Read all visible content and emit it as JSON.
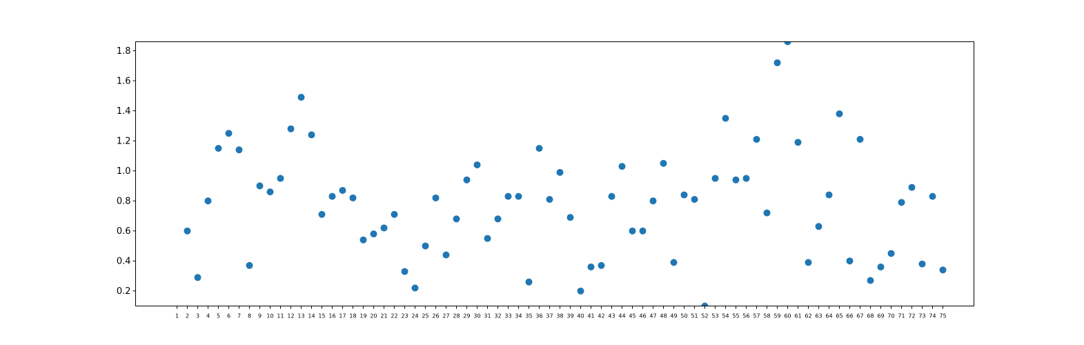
{
  "chart_data": {
    "type": "scatter",
    "title": "",
    "xlabel": "",
    "ylabel": "",
    "grid": false,
    "legend": false,
    "marker_color": "#1f77b4",
    "ylim": [
      0.1,
      1.86
    ],
    "xlim": [
      -3,
      78
    ],
    "y_ticks": [
      "0.2",
      "0.4",
      "0.6",
      "0.8",
      "1.0",
      "1.2",
      "1.4",
      "1.6",
      "1.8"
    ],
    "x_ticks": [
      "1",
      "2",
      "3",
      "4",
      "5",
      "6",
      "7",
      "8",
      "9",
      "10",
      "11",
      "12",
      "13",
      "14",
      "15",
      "16",
      "17",
      "18",
      "19",
      "20",
      "21",
      "22",
      "23",
      "24",
      "25",
      "26",
      "27",
      "28",
      "29",
      "30",
      "31",
      "32",
      "33",
      "34",
      "35",
      "36",
      "37",
      "38",
      "39",
      "40",
      "41",
      "42",
      "43",
      "44",
      "45",
      "46",
      "47",
      "48",
      "49",
      "50",
      "51",
      "52",
      "53",
      "54",
      "55",
      "56",
      "57",
      "58",
      "59",
      "60",
      "61",
      "62",
      "63",
      "64",
      "65",
      "66",
      "67",
      "68",
      "69",
      "70",
      "71",
      "72",
      "73",
      "74",
      "75"
    ],
    "x": [
      2,
      3,
      4,
      5,
      6,
      7,
      8,
      9,
      10,
      11,
      12,
      13,
      14,
      15,
      16,
      17,
      18,
      19,
      20,
      21,
      22,
      23,
      24,
      25,
      26,
      27,
      28,
      29,
      30,
      31,
      32,
      33,
      34,
      35,
      36,
      37,
      38,
      39,
      40,
      41,
      42,
      43,
      44,
      45,
      46,
      47,
      48,
      49,
      50,
      51,
      52,
      53,
      54,
      55,
      56,
      57,
      58,
      59,
      60,
      61,
      62,
      63,
      64,
      65,
      66,
      67,
      68,
      69,
      70,
      71,
      72,
      73,
      74,
      75
    ],
    "y": [
      0.6,
      0.29,
      0.8,
      1.15,
      1.25,
      1.14,
      0.37,
      0.9,
      0.86,
      0.95,
      1.28,
      1.49,
      1.24,
      0.71,
      0.83,
      0.87,
      0.82,
      0.54,
      0.58,
      0.62,
      0.71,
      0.33,
      0.22,
      0.5,
      0.82,
      0.44,
      0.68,
      0.94,
      1.04,
      0.55,
      0.68,
      0.83,
      0.83,
      0.26,
      1.15,
      0.81,
      0.99,
      0.69,
      0.2,
      0.36,
      0.37,
      0.83,
      1.03,
      0.6,
      0.6,
      0.8,
      1.05,
      0.39,
      0.84,
      0.81,
      0.1,
      0.95,
      1.35,
      0.94,
      0.95,
      1.21,
      0.72,
      1.72,
      1.86,
      1.19,
      0.39,
      0.63,
      0.84,
      1.38,
      0.4,
      1.21,
      0.27,
      0.36,
      0.45,
      0.79,
      0.89,
      0.38,
      0.83,
      0.34
    ]
  }
}
